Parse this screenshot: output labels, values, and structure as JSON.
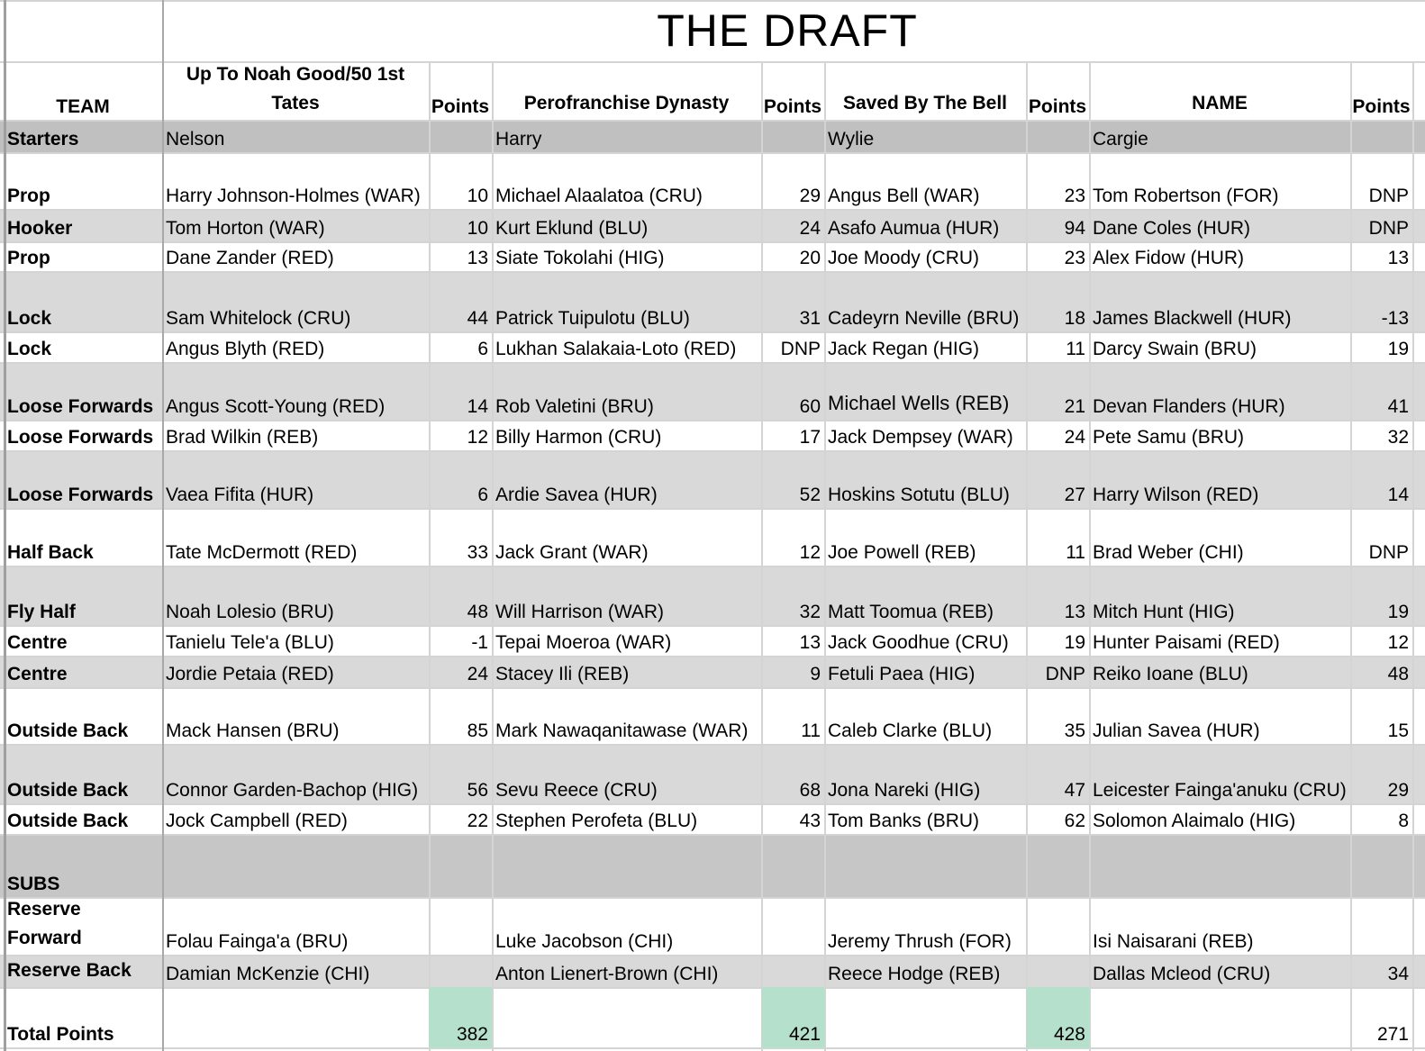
{
  "title": "THE DRAFT",
  "headers": {
    "team": "TEAM",
    "teams": [
      {
        "name_line1": "Up To Noah Good/50 1st",
        "name_line2": "Tates",
        "points": "Points"
      },
      {
        "name_line1": "",
        "name_line2": "Perofranchise Dynasty",
        "points": "Points"
      },
      {
        "name_line1": "",
        "name_line2": "Saved By The Bell",
        "points": "Points"
      },
      {
        "name_line1": "",
        "name_line2": "NAME",
        "points": "Points"
      }
    ]
  },
  "starters": {
    "label": "Starters",
    "owners": [
      "Nelson",
      "Harry",
      "Wylie",
      "Cargie"
    ]
  },
  "rows": [
    {
      "pos": "Prop",
      "cells": [
        [
          "Harry Johnson-Holmes (WAR)",
          "10"
        ],
        [
          "Michael Alaalatoa (CRU)",
          "29"
        ],
        [
          "Angus Bell (WAR)",
          "23"
        ],
        [
          "Tom Robertson (FOR)",
          "DNP"
        ]
      ]
    },
    {
      "pos": "Hooker",
      "cells": [
        [
          "Tom Horton (WAR)",
          "10"
        ],
        [
          "Kurt Eklund (BLU)",
          "24"
        ],
        [
          "Asafo Aumua (HUR)",
          "94"
        ],
        [
          "Dane Coles (HUR)",
          "DNP"
        ]
      ]
    },
    {
      "pos": "Prop",
      "cells": [
        [
          "Dane Zander (RED)",
          "13"
        ],
        [
          "Siate Tokolahi (HIG)",
          "20"
        ],
        [
          "Joe Moody (CRU)",
          "23"
        ],
        [
          "Alex Fidow (HUR)",
          "13"
        ]
      ]
    },
    {
      "pos": "Lock",
      "cells": [
        [
          "Sam Whitelock (CRU)",
          "44"
        ],
        [
          "Patrick Tuipulotu (BLU)",
          "31"
        ],
        [
          "Cadeyrn Neville (BRU)",
          "18"
        ],
        [
          "James Blackwell (HUR)",
          "-13"
        ]
      ]
    },
    {
      "pos": "Lock",
      "cells": [
        [
          "Angus Blyth (RED)",
          "6"
        ],
        [
          "Lukhan Salakaia-Loto (RED)",
          "DNP"
        ],
        [
          "Jack Regan (HIG)",
          "11"
        ],
        [
          "Darcy Swain (BRU)",
          "19"
        ]
      ]
    },
    {
      "pos": "Loose Forwards",
      "cells": [
        [
          "Angus Scott-Young (RED)",
          "14"
        ],
        [
          "Rob Valetini (BRU)",
          "60"
        ],
        [
          "Michael Wells (REB)",
          "21"
        ],
        [
          "Devan Flanders (HUR)",
          "41"
        ]
      ]
    },
    {
      "pos": "Loose Forwards",
      "cells": [
        [
          "Brad Wilkin (REB)",
          "12"
        ],
        [
          "Billy Harmon (CRU)",
          "17"
        ],
        [
          "Jack Dempsey (WAR)",
          "24"
        ],
        [
          "Pete Samu (BRU)",
          "32"
        ]
      ]
    },
    {
      "pos": "Loose Forwards",
      "cells": [
        [
          "Vaea Fifita (HUR)",
          "6"
        ],
        [
          "Ardie Savea (HUR)",
          "52"
        ],
        [
          "Hoskins Sotutu (BLU)",
          "27"
        ],
        [
          "Harry Wilson (RED)",
          "14"
        ]
      ]
    },
    {
      "pos": "Half Back",
      "cells": [
        [
          "Tate McDermott (RED)",
          "33"
        ],
        [
          "Jack Grant (WAR)",
          "12"
        ],
        [
          "Joe Powell (REB)",
          "11"
        ],
        [
          "Brad Weber (CHI)",
          "DNP"
        ]
      ]
    },
    {
      "pos": "Fly Half",
      "cells": [
        [
          "Noah Lolesio (BRU)",
          "48"
        ],
        [
          "Will Harrison (WAR)",
          "32"
        ],
        [
          "Matt Toomua (REB)",
          "13"
        ],
        [
          "Mitch Hunt (HIG)",
          "19"
        ]
      ]
    },
    {
      "pos": "Centre",
      "cells": [
        [
          "Tanielu Tele'a (BLU)",
          "-1"
        ],
        [
          "Tepai Moeroa (WAR)",
          "13"
        ],
        [
          "Jack Goodhue (CRU)",
          "19"
        ],
        [
          "Hunter Paisami (RED)",
          "12"
        ]
      ]
    },
    {
      "pos": "Centre",
      "cells": [
        [
          "Jordie Petaia (RED)",
          "24"
        ],
        [
          "Stacey Ili (REB)",
          "9"
        ],
        [
          "Fetuli Paea (HIG)",
          "DNP"
        ],
        [
          "Reiko Ioane (BLU)",
          "48"
        ]
      ]
    },
    {
      "pos": "Outside Back",
      "cells": [
        [
          "Mack Hansen (BRU)",
          "85"
        ],
        [
          "Mark Nawaqanitawase (WAR)",
          "11"
        ],
        [
          "Caleb Clarke (BLU)",
          "35"
        ],
        [
          "Julian Savea (HUR)",
          "15"
        ]
      ]
    },
    {
      "pos": "Outside Back",
      "cells": [
        [
          "Connor Garden-Bachop (HIG)",
          "56"
        ],
        [
          "Sevu Reece (CRU)",
          "68"
        ],
        [
          "Jona Nareki (HIG)",
          "47"
        ],
        [
          "Leicester Fainga'anuku (CRU)",
          "29"
        ]
      ]
    },
    {
      "pos": "Outside Back",
      "cells": [
        [
          "Jock Campbell (RED)",
          "22"
        ],
        [
          "Stephen Perofeta (BLU)",
          "43"
        ],
        [
          "Tom Banks (BRU)",
          "62"
        ],
        [
          "Solomon Alaimalo (HIG)",
          "8"
        ]
      ]
    }
  ],
  "subs": {
    "label": "SUBS"
  },
  "sub_rows": [
    {
      "pos_line1": "Reserve",
      "pos_line2": "Forward",
      "cells": [
        [
          "Folau Fainga'a (BRU)",
          ""
        ],
        [
          "Luke Jacobson (CHI)",
          ""
        ],
        [
          "Jeremy Thrush (FOR)",
          ""
        ],
        [
          "Isi Naisarani (REB)",
          ""
        ]
      ]
    },
    {
      "pos_line1": "",
      "pos_line2": "Reserve Back",
      "cells": [
        [
          "Damian McKenzie (CHI)",
          ""
        ],
        [
          "Anton Lienert-Brown (CHI)",
          ""
        ],
        [
          "Reece Hodge (REB)",
          ""
        ],
        [
          "Dallas Mcleod (CRU)",
          "34"
        ]
      ]
    }
  ],
  "totals": {
    "label": "Total Points",
    "values": [
      "382",
      "421",
      "428",
      "271"
    ]
  },
  "colors": {
    "shaded_row": "#d9d9d9",
    "subs_band": "#c6c6c6",
    "total_highlight": "#b5e0cc",
    "gridline": "#d4d4d4"
  }
}
